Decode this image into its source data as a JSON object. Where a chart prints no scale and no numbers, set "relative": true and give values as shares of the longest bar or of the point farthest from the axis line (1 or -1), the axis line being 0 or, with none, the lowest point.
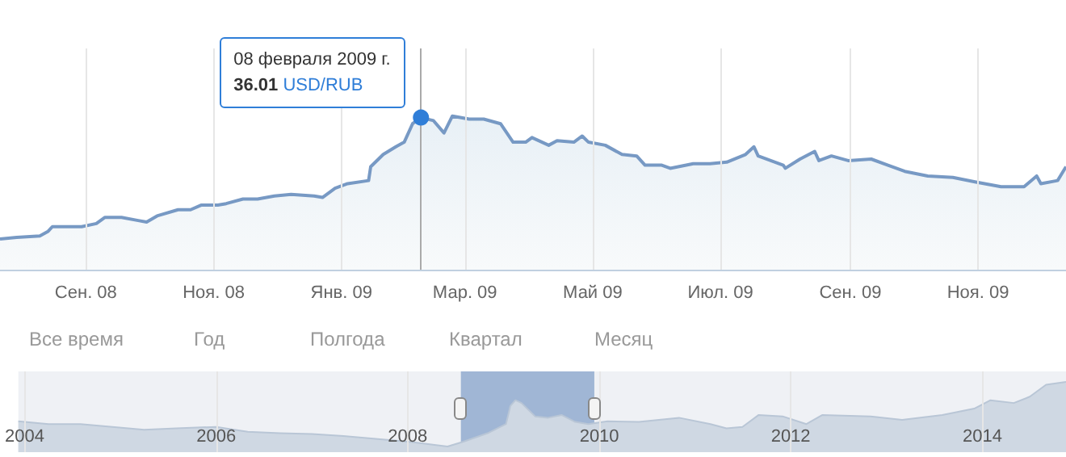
{
  "chart_data": [
    {
      "type": "area",
      "relative": true,
      "color": "#7799c4",
      "grid": "x",
      "marker": "none",
      "xlim": [
        "2008-07-22",
        "2009-12-13"
      ],
      "xticks": [
        {
          "value": "2008-09-01",
          "label": "Сен. 08"
        },
        {
          "value": "2008-11-01",
          "label": "Ноя. 08"
        },
        {
          "value": "2009-01-01",
          "label": "Янв. 09"
        },
        {
          "value": "2009-03-01",
          "label": "Мар. 09"
        },
        {
          "value": "2009-05-01",
          "label": "Май 09"
        },
        {
          "value": "2009-07-01",
          "label": "Июл. 09"
        },
        {
          "value": "2009-09-01",
          "label": "Сен. 09"
        },
        {
          "value": "2009-11-01",
          "label": "Ноя. 09"
        }
      ],
      "x": [
        "2008-07-22",
        "2008-07-30",
        "2008-08-10",
        "2008-08-14",
        "2008-08-16",
        "2008-08-22",
        "2008-08-30",
        "2008-09-06",
        "2008-09-10",
        "2008-09-18",
        "2008-09-26",
        "2008-09-30",
        "2008-10-05",
        "2008-10-15",
        "2008-10-21",
        "2008-10-26",
        "2008-11-03",
        "2008-11-07",
        "2008-11-15",
        "2008-11-22",
        "2008-11-30",
        "2008-12-08",
        "2008-12-19",
        "2008-12-23",
        "2008-12-29",
        "2009-01-04",
        "2009-01-14",
        "2009-01-15",
        "2009-01-21",
        "2009-01-27",
        "2009-01-31",
        "2009-02-04",
        "2009-02-08",
        "2009-02-14",
        "2009-02-19",
        "2009-02-23",
        "2009-03-03",
        "2009-03-10",
        "2009-03-18",
        "2009-03-24",
        "2009-03-30",
        "2009-04-02",
        "2009-04-10",
        "2009-04-14",
        "2009-04-22",
        "2009-04-26",
        "2009-04-29",
        "2009-05-07",
        "2009-05-15",
        "2009-05-22",
        "2009-05-26",
        "2009-06-03",
        "2009-06-07",
        "2009-06-18",
        "2009-06-26",
        "2009-07-04",
        "2009-07-13",
        "2009-07-17",
        "2009-07-19",
        "2009-07-31",
        "2009-08-01",
        "2009-08-08",
        "2009-08-15",
        "2009-08-17",
        "2009-08-23",
        "2009-08-31",
        "2009-09-11",
        "2009-09-19",
        "2009-09-27",
        "2009-10-08",
        "2009-10-20",
        "2009-10-31",
        "2009-11-12",
        "2009-11-23",
        "2009-11-29",
        "2009-12-01",
        "2009-12-09",
        "2009-12-13"
      ],
      "values": [
        0.2,
        0.21,
        0.22,
        0.25,
        0.28,
        0.28,
        0.28,
        0.3,
        0.34,
        0.34,
        0.32,
        0.31,
        0.35,
        0.39,
        0.39,
        0.42,
        0.42,
        0.43,
        0.46,
        0.46,
        0.48,
        0.49,
        0.48,
        0.47,
        0.53,
        0.56,
        0.58,
        0.67,
        0.75,
        0.8,
        0.83,
        0.95,
        0.99,
        0.97,
        0.89,
        1,
        0.98,
        0.98,
        0.95,
        0.83,
        0.83,
        0.86,
        0.81,
        0.84,
        0.83,
        0.87,
        0.83,
        0.81,
        0.75,
        0.74,
        0.68,
        0.68,
        0.66,
        0.69,
        0.69,
        0.7,
        0.75,
        0.8,
        0.74,
        0.68,
        0.66,
        0.72,
        0.77,
        0.71,
        0.74,
        0.71,
        0.72,
        0.68,
        0.64,
        0.61,
        0.6,
        0.57,
        0.54,
        0.54,
        0.61,
        0.56,
        0.58,
        0.67
      ],
      "ref_lines": [
        {
          "axis": "x",
          "value": "2009-02-08",
          "color": "#aaaaaa"
        }
      ],
      "annotations": [
        {
          "text": "08 февраля 2009 г.\n36.01 USD/RUB",
          "x": "2009-02-08",
          "y": 0.99
        },
        "Все время",
        "Год",
        "Полгода",
        "Квартал",
        "Месяц"
      ]
    },
    {
      "type": "area",
      "relative": true,
      "color": "#cfd8e3",
      "grid": "x",
      "marker": "none",
      "xlim": [
        "2003-12-08",
        "2014-11-16"
      ],
      "xticks": [
        {
          "value": "2004-01-01",
          "label": "2004"
        },
        {
          "value": "2006-01-01",
          "label": "2006"
        },
        {
          "value": "2008-01-01",
          "label": "2008"
        },
        {
          "value": "2010-01-01",
          "label": "2010"
        },
        {
          "value": "2012-01-01",
          "label": "2012"
        },
        {
          "value": "2014-01-01",
          "label": "2014"
        }
      ],
      "x": [
        "2003-12-08",
        "2004-04",
        "2004-08",
        "2004-12",
        "2005-04",
        "2005-08",
        "2006-01",
        "2006-05",
        "2006-09",
        "2007-01",
        "2007-05",
        "2007-09",
        "2008-01",
        "2008-06",
        "2008-08",
        "2008-11",
        "2009-01-10",
        "2009-01-27",
        "2009-02-15",
        "2009-03-10",
        "2009-05-01",
        "2009-06-20",
        "2009-08-10",
        "2009-10-01",
        "2009-11-20",
        "2010-02",
        "2010-06",
        "2010-11",
        "2011-03",
        "2011-05",
        "2011-07",
        "2011-09",
        "2011-12",
        "2012-03",
        "2012-05",
        "2012-11",
        "2013-03",
        "2013-08",
        "2013-12",
        "2014-02",
        "2014-05",
        "2014-07",
        "2014-09",
        "2014-11-16"
      ],
      "values": [
        0.44,
        0.4,
        0.4,
        0.36,
        0.32,
        0.34,
        0.36,
        0.29,
        0.27,
        0.26,
        0.23,
        0.19,
        0.15,
        0.08,
        0.15,
        0.27,
        0.4,
        0.66,
        0.74,
        0.7,
        0.51,
        0.49,
        0.53,
        0.43,
        0.4,
        0.44,
        0.43,
        0.49,
        0.4,
        0.34,
        0.36,
        0.53,
        0.51,
        0.4,
        0.53,
        0.51,
        0.46,
        0.53,
        0.62,
        0.74,
        0.7,
        0.79,
        0.96,
        1
      ],
      "bands": [
        {
          "axis": "x",
          "from": "2008-07-22",
          "to": "2009-12-13",
          "color": "#6a8fbf"
        }
      ]
    }
  ]
}
